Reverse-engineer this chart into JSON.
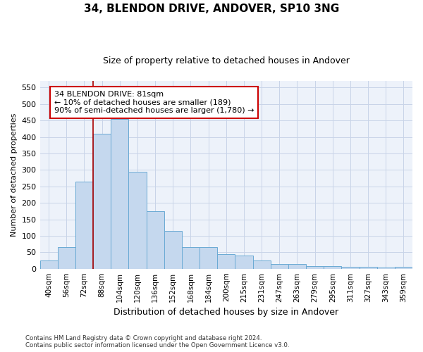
{
  "title": "34, BLENDON DRIVE, ANDOVER, SP10 3NG",
  "subtitle": "Size of property relative to detached houses in Andover",
  "xlabel": "Distribution of detached houses by size in Andover",
  "ylabel": "Number of detached properties",
  "categories": [
    "40sqm",
    "56sqm",
    "72sqm",
    "88sqm",
    "104sqm",
    "120sqm",
    "136sqm",
    "152sqm",
    "168sqm",
    "184sqm",
    "200sqm",
    "215sqm",
    "231sqm",
    "247sqm",
    "263sqm",
    "279sqm",
    "295sqm",
    "311sqm",
    "327sqm",
    "343sqm",
    "359sqm"
  ],
  "values": [
    25,
    65,
    265,
    410,
    455,
    295,
    175,
    115,
    65,
    65,
    45,
    40,
    25,
    15,
    15,
    8,
    8,
    5,
    5,
    4,
    5
  ],
  "bar_color": "#c5d8ee",
  "bar_edge_color": "#6aaad4",
  "grid_color": "#c8d4e8",
  "background_color": "#edf2fa",
  "vline_x": 2.5,
  "vline_color": "#aa0000",
  "annotation_text": "34 BLENDON DRIVE: 81sqm\n← 10% of detached houses are smaller (189)\n90% of semi-detached houses are larger (1,780) →",
  "annotation_box_color": "#ffffff",
  "annotation_box_edge": "#cc0000",
  "footnote": "Contains HM Land Registry data © Crown copyright and database right 2024.\nContains public sector information licensed under the Open Government Licence v3.0.",
  "ylim": [
    0,
    570
  ],
  "yticks": [
    0,
    50,
    100,
    150,
    200,
    250,
    300,
    350,
    400,
    450,
    500,
    550
  ]
}
